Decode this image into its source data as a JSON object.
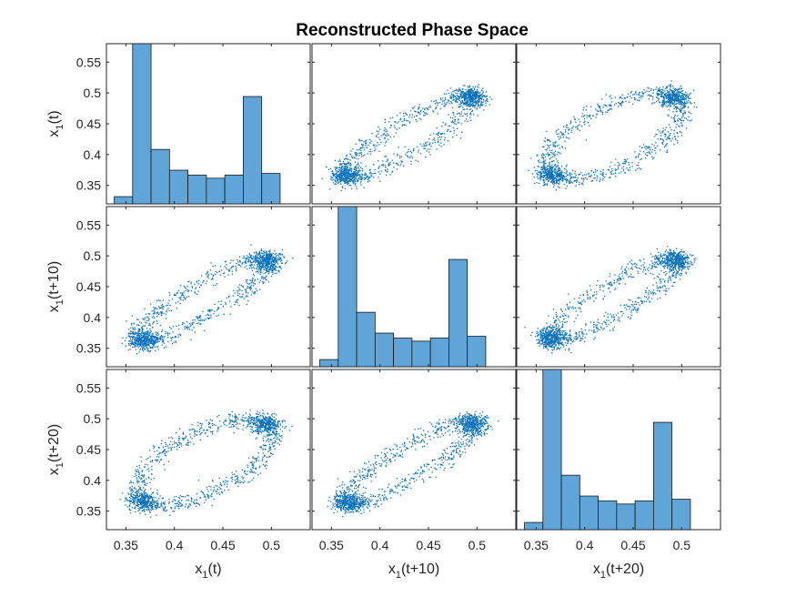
{
  "figure": {
    "title": "Reconstructed Phase Space"
  },
  "chart_data": {
    "type": "scatter-matrix",
    "title": "Reconstructed Phase Space",
    "variables": [
      "x_1(t)",
      "x_1(t+10)",
      "x_1(t+20)"
    ],
    "x_labels": [
      {
        "base": "x",
        "sub": "1",
        "rest": "(t)"
      },
      {
        "base": "x",
        "sub": "1",
        "rest": "(t+10)"
      },
      {
        "base": "x",
        "sub": "1",
        "rest": "(t+20)"
      }
    ],
    "y_labels": [
      {
        "base": "x",
        "sub": "1",
        "rest": "(t)"
      },
      {
        "base": "x",
        "sub": "1",
        "rest": "(t+10)"
      },
      {
        "base": "x",
        "sub": "1",
        "rest": "(t+20)"
      }
    ],
    "xlim": [
      0.33,
      0.54
    ],
    "ylim": [
      0.32,
      0.58
    ],
    "x_ticks": [
      0.35,
      0.4,
      0.45,
      0.5
    ],
    "x_tick_labels": [
      "0.35",
      "0.4",
      "0.45",
      "0.5"
    ],
    "y_ticks": [
      0.35,
      0.4,
      0.45,
      0.5,
      0.55
    ],
    "y_tick_labels": [
      "0.35",
      "0.4",
      "0.45",
      "0.5",
      "0.55"
    ],
    "histogram": {
      "bin_edges": [
        0.338,
        0.357,
        0.376,
        0.395,
        0.414,
        0.433,
        0.452,
        0.471,
        0.49,
        0.509
      ],
      "relative_heights": [
        0.045,
        1.0,
        0.34,
        0.21,
        0.18,
        0.16,
        0.18,
        0.67,
        0.19
      ]
    },
    "scatter_panels": [
      {
        "row": 0,
        "col": 1,
        "pair": [
          "x_1(t+10)",
          "x_1(t)"
        ],
        "lag": 10
      },
      {
        "row": 0,
        "col": 2,
        "pair": [
          "x_1(t+20)",
          "x_1(t)"
        ],
        "lag": 20
      },
      {
        "row": 1,
        "col": 0,
        "pair": [
          "x_1(t)",
          "x_1(t+10)"
        ],
        "lag": 10
      },
      {
        "row": 1,
        "col": 2,
        "pair": [
          "x_1(t+20)",
          "x_1(t+10)"
        ],
        "lag": 10
      },
      {
        "row": 2,
        "col": 0,
        "pair": [
          "x_1(t)",
          "x_1(t+20)"
        ],
        "lag": 20
      },
      {
        "row": 2,
        "col": 1,
        "pair": [
          "x_1(t+10)",
          "x_1(t+20)"
        ],
        "lag": 10
      }
    ],
    "series_color": "#0072BD",
    "bar_color": "#5FA5D8",
    "grid": false
  }
}
